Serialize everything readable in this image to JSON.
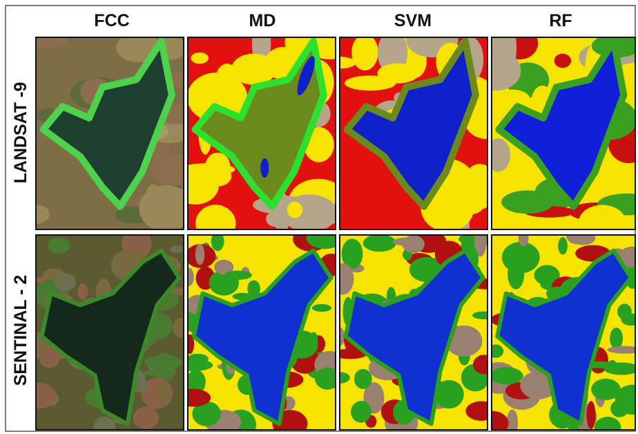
{
  "columns": [
    "FCC",
    "MD",
    "SVM",
    "RF"
  ],
  "rows": [
    "LANDSAT -9",
    "SENTINAL - 2"
  ]
}
